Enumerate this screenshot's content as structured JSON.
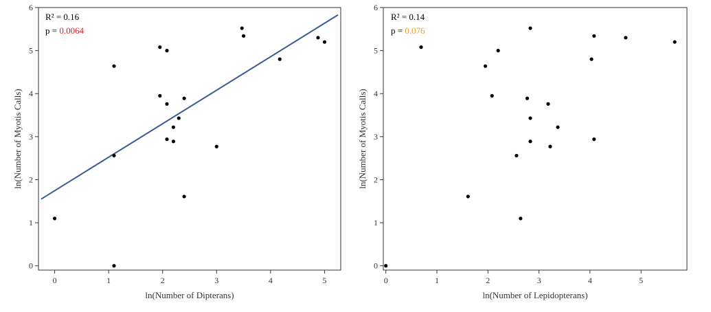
{
  "chart_data": [
    {
      "type": "scatter",
      "xlabel": "ln(Number of Dipterans)",
      "ylabel": "ln(Number of Myotis Calls)",
      "xlim": [
        -0.3,
        5.3
      ],
      "ylim": [
        -0.1,
        6.0
      ],
      "xticks": [
        "0",
        "1",
        "2",
        "3",
        "4",
        "5"
      ],
      "yticks": [
        "0",
        "1",
        "2",
        "3",
        "4",
        "5",
        "6"
      ],
      "r2_text": "R² = 0.16",
      "p_label": "p = ",
      "p_value": "0.0064",
      "p_color": "#d8232a",
      "fit_line": {
        "x": [
          -0.25,
          5.25
        ],
        "y": [
          1.55,
          5.83
        ],
        "color": "#3a5a95"
      },
      "points": [
        {
          "x": 0.0,
          "y": 1.1
        },
        {
          "x": 1.1,
          "y": 0.0
        },
        {
          "x": 1.1,
          "y": 2.56
        },
        {
          "x": 1.1,
          "y": 4.64
        },
        {
          "x": 1.95,
          "y": 5.08
        },
        {
          "x": 2.08,
          "y": 5.0
        },
        {
          "x": 1.95,
          "y": 3.95
        },
        {
          "x": 2.08,
          "y": 3.76
        },
        {
          "x": 2.4,
          "y": 3.89
        },
        {
          "x": 2.3,
          "y": 3.43
        },
        {
          "x": 2.2,
          "y": 3.22
        },
        {
          "x": 2.08,
          "y": 2.94
        },
        {
          "x": 2.2,
          "y": 2.89
        },
        {
          "x": 2.4,
          "y": 1.61
        },
        {
          "x": 3.0,
          "y": 2.77
        },
        {
          "x": 3.47,
          "y": 5.52
        },
        {
          "x": 3.5,
          "y": 5.34
        },
        {
          "x": 4.17,
          "y": 4.8
        },
        {
          "x": 4.88,
          "y": 5.3
        },
        {
          "x": 5.0,
          "y": 5.2
        }
      ]
    },
    {
      "type": "scatter",
      "xlabel": "ln(Number of Lepidopterans)",
      "ylabel": "ln(Number of Myotis Calls)",
      "xlim": [
        -0.05,
        5.9
      ],
      "ylim": [
        -0.1,
        6.0
      ],
      "xticks": [
        "0",
        "1",
        "2",
        "3",
        "4",
        "5"
      ],
      "yticks": [
        "0",
        "1",
        "2",
        "3",
        "4",
        "5",
        "6"
      ],
      "r2_text": "R² = 0.14",
      "p_label": "p = ",
      "p_value": "0.076",
      "p_color": "#e8a13a",
      "points": [
        {
          "x": 0.0,
          "y": 0.0
        },
        {
          "x": 0.69,
          "y": 5.08
        },
        {
          "x": 1.61,
          "y": 1.61
        },
        {
          "x": 1.95,
          "y": 4.64
        },
        {
          "x": 2.08,
          "y": 3.95
        },
        {
          "x": 2.2,
          "y": 5.0
        },
        {
          "x": 2.56,
          "y": 2.56
        },
        {
          "x": 2.64,
          "y": 1.1
        },
        {
          "x": 2.77,
          "y": 3.89
        },
        {
          "x": 2.83,
          "y": 5.52
        },
        {
          "x": 2.83,
          "y": 3.43
        },
        {
          "x": 2.83,
          "y": 2.89
        },
        {
          "x": 3.18,
          "y": 3.76
        },
        {
          "x": 3.22,
          "y": 2.77
        },
        {
          "x": 3.37,
          "y": 3.22
        },
        {
          "x": 4.03,
          "y": 4.8
        },
        {
          "x": 4.08,
          "y": 5.34
        },
        {
          "x": 4.08,
          "y": 2.94
        },
        {
          "x": 4.7,
          "y": 5.3
        },
        {
          "x": 5.66,
          "y": 5.2
        }
      ]
    }
  ]
}
